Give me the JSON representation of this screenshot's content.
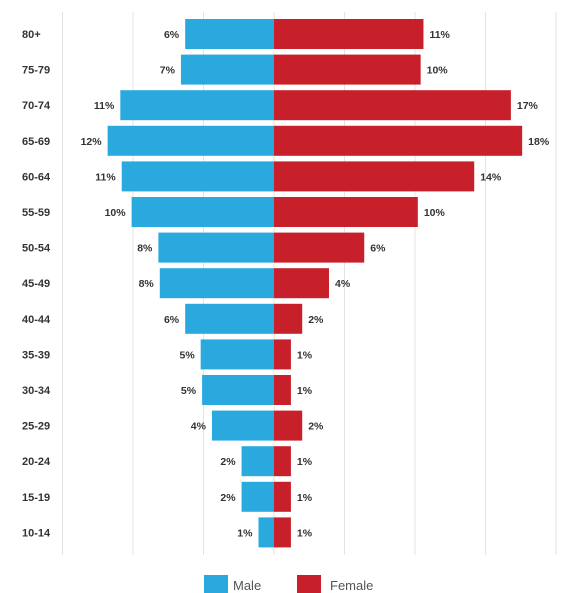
{
  "chart_data": {
    "type": "bar",
    "orientation": "horizontal",
    "variant": "population-pyramid",
    "categories": [
      "80+",
      "75-79",
      "70-74",
      "65-69",
      "60-64",
      "55-59",
      "50-54",
      "45-49",
      "40-44",
      "35-39",
      "30-34",
      "25-29",
      "20-24",
      "15-19",
      "10-14"
    ],
    "series": [
      {
        "name": "Male",
        "color": "#2aa9df",
        "direction": "left",
        "values": [
          6.3,
          6.6,
          10.9,
          11.8,
          10.8,
          10.1,
          8.2,
          8.1,
          6.3,
          5.2,
          5.1,
          4.4,
          2.3,
          2.3,
          1.1
        ],
        "labels": [
          "6%",
          "7%",
          "11%",
          "12%",
          "11%",
          "10%",
          "8%",
          "8%",
          "6%",
          "5%",
          "5%",
          "4%",
          "2%",
          "2%",
          "1%"
        ]
      },
      {
        "name": "Female",
        "color": "#c8202a",
        "direction": "right",
        "values": [
          10.6,
          10.4,
          16.8,
          17.6,
          14.2,
          10.2,
          6.4,
          3.9,
          2.0,
          1.2,
          1.2,
          2.0,
          1.2,
          1.2,
          1.2
        ],
        "labels": [
          "11%",
          "10%",
          "17%",
          "18%",
          "14%",
          "10%",
          "6%",
          "4%",
          "2%",
          "1%",
          "1%",
          "2%",
          "1%",
          "1%",
          "1%"
        ]
      }
    ],
    "xlim": [
      -15,
      20
    ],
    "grid": true,
    "legend_position": "bottom"
  }
}
